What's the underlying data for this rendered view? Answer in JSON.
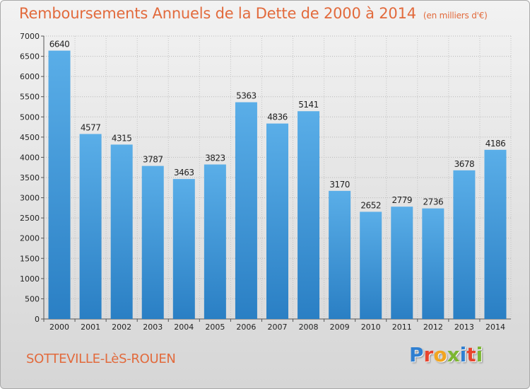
{
  "header": {
    "title": "Remboursements Annuels de la Dette de 2000 à 2014",
    "subtitle": "(en milliers d'€)"
  },
  "footer": {
    "city": "SOTTEVILLE-LèS-ROUEN",
    "logo": "Proxiti"
  },
  "colors": {
    "accent": "#e26a3c",
    "bar_top": "#5aaee8",
    "bar_bottom": "#2a7fc4",
    "logo_letters": [
      "#2f7fd1",
      "#e8442e",
      "#f2a51f",
      "#7cb632",
      "#2f7fd1",
      "#e8442e",
      "#7cb632"
    ]
  },
  "chart_data": {
    "type": "bar",
    "categories": [
      "2000",
      "2001",
      "2002",
      "2003",
      "2004",
      "2005",
      "2006",
      "2007",
      "2008",
      "2009",
      "2010",
      "2011",
      "2012",
      "2013",
      "2014"
    ],
    "values": [
      6640,
      4577,
      4315,
      3787,
      3463,
      3823,
      5363,
      4836,
      5141,
      3170,
      2652,
      2779,
      2736,
      3678,
      4186
    ],
    "title": "Remboursements Annuels de la Dette de 2000 à 2014",
    "ylim": [
      0,
      7000
    ],
    "yticks": [
      0,
      500,
      1000,
      1500,
      2000,
      2500,
      3000,
      3500,
      4000,
      4500,
      5000,
      5500,
      6000,
      6500,
      7000
    ],
    "grid": true
  }
}
